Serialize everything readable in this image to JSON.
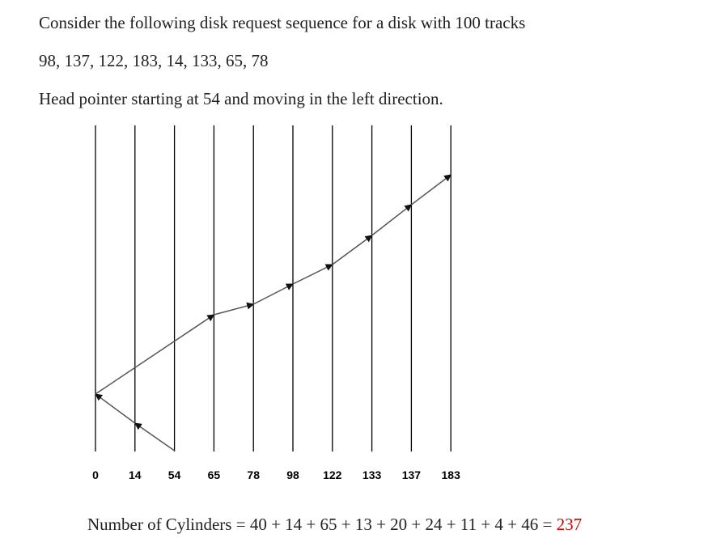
{
  "problem": {
    "line1": "Consider the following disk request sequence for a disk with 100 tracks",
    "line2": "98, 137, 122, 183, 14, 133, 65, 78",
    "line3": "Head pointer starting at 54 and moving in the left direction."
  },
  "diagram": {
    "tracks": [
      "0",
      "14",
      "54",
      "65",
      "78",
      "98",
      "122",
      "133",
      "137",
      "183"
    ],
    "path_order": [
      "54",
      "14",
      "0",
      "65",
      "78",
      "98",
      "122",
      "133",
      "137",
      "183"
    ],
    "line_color": "#000000",
    "arrow_color": "#555555"
  },
  "result": {
    "expression": "Number of Cylinders = 40 + 14 + 65 + 13 + 20 + 24 + 11 + 4 + 46 = ",
    "total": "237",
    "total_color": "#cc0000"
  }
}
